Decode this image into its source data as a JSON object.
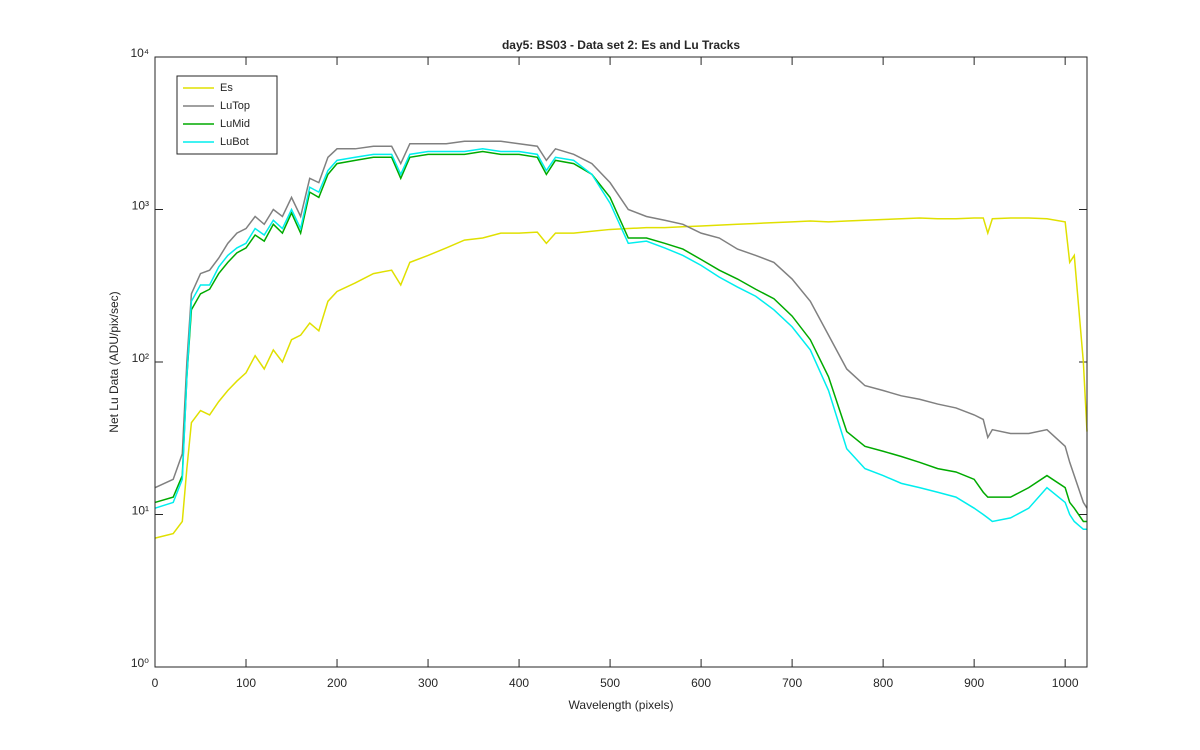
{
  "chart_data": {
    "type": "line",
    "title": "day5: BS03 - Data set 2: Es and Lu Tracks",
    "x_label": "Wavelength (pixels)",
    "y_label": "Net Lu Data (ADU/pix/sec)",
    "yscale": "log",
    "legend_location": "northwest",
    "xlim": [
      0,
      1024
    ],
    "ylim": [
      1,
      10000
    ],
    "xticks": [
      0,
      100,
      200,
      300,
      400,
      500,
      600,
      700,
      800,
      900,
      1000
    ],
    "yticks": [
      {
        "value": 1,
        "label": "10⁰"
      },
      {
        "value": 10,
        "label": "10¹"
      },
      {
        "value": 100,
        "label": "10²"
      },
      {
        "value": 1000,
        "label": "10³"
      },
      {
        "value": 10000,
        "label": "10⁴"
      }
    ],
    "x": [
      0,
      20,
      30,
      35,
      40,
      50,
      60,
      70,
      80,
      90,
      100,
      110,
      120,
      130,
      140,
      150,
      160,
      170,
      180,
      190,
      200,
      220,
      240,
      260,
      270,
      280,
      300,
      320,
      340,
      360,
      380,
      400,
      420,
      430,
      440,
      460,
      480,
      500,
      520,
      540,
      560,
      580,
      600,
      620,
      640,
      660,
      680,
      700,
      720,
      740,
      760,
      780,
      800,
      820,
      840,
      860,
      880,
      900,
      910,
      915,
      920,
      940,
      960,
      980,
      1000,
      1005,
      1010,
      1020,
      1024
    ],
    "series": [
      {
        "name": "Es",
        "color": "#e0e000",
        "values": [
          7,
          7.5,
          9,
          20,
          40,
          48,
          45,
          55,
          65,
          75,
          85,
          110,
          90,
          120,
          100,
          140,
          150,
          180,
          160,
          250,
          290,
          330,
          380,
          400,
          320,
          450,
          500,
          560,
          630,
          650,
          700,
          700,
          710,
          600,
          700,
          700,
          720,
          740,
          750,
          760,
          760,
          770,
          780,
          790,
          800,
          810,
          820,
          830,
          840,
          830,
          840,
          850,
          860,
          870,
          880,
          870,
          870,
          880,
          880,
          700,
          870,
          880,
          880,
          870,
          830,
          450,
          500,
          100,
          35
        ]
      },
      {
        "name": "LuTop",
        "color": "#808080",
        "values": [
          15,
          17,
          25,
          100,
          280,
          380,
          400,
          480,
          600,
          700,
          750,
          900,
          800,
          1000,
          900,
          1200,
          900,
          1600,
          1500,
          2200,
          2500,
          2500,
          2600,
          2600,
          2000,
          2700,
          2700,
          2700,
          2800,
          2800,
          2800,
          2700,
          2600,
          2100,
          2500,
          2300,
          2000,
          1500,
          1000,
          900,
          850,
          800,
          700,
          650,
          550,
          500,
          450,
          350,
          250,
          150,
          90,
          70,
          65,
          60,
          57,
          53,
          50,
          45,
          42,
          32,
          36,
          34,
          34,
          36,
          28,
          22,
          18,
          12,
          11
        ]
      },
      {
        "name": "LuMid",
        "color": "#00aa00",
        "values": [
          12,
          13,
          18,
          80,
          220,
          280,
          300,
          380,
          450,
          520,
          560,
          680,
          620,
          800,
          700,
          950,
          700,
          1300,
          1200,
          1700,
          2000,
          2100,
          2200,
          2200,
          1600,
          2200,
          2300,
          2300,
          2300,
          2400,
          2300,
          2300,
          2200,
          1700,
          2100,
          2000,
          1700,
          1200,
          650,
          650,
          600,
          550,
          470,
          400,
          350,
          300,
          260,
          200,
          140,
          80,
          35,
          28,
          26,
          24,
          22,
          20,
          19,
          17,
          14,
          13,
          13,
          13,
          15,
          18,
          15,
          12,
          11,
          9,
          9
        ]
      },
      {
        "name": "LuBot",
        "color": "#00eeee",
        "values": [
          11,
          12,
          17,
          80,
          250,
          320,
          320,
          420,
          500,
          560,
          600,
          750,
          680,
          850,
          750,
          1000,
          750,
          1400,
          1300,
          1800,
          2100,
          2200,
          2300,
          2300,
          1700,
          2300,
          2400,
          2400,
          2400,
          2500,
          2400,
          2400,
          2300,
          1800,
          2200,
          2100,
          1700,
          1100,
          600,
          620,
          560,
          500,
          430,
          360,
          310,
          270,
          220,
          170,
          120,
          65,
          27,
          20,
          18,
          16,
          15,
          14,
          13,
          11,
          10,
          9.5,
          9,
          9.5,
          11,
          15,
          12,
          10,
          9,
          8,
          8
        ]
      }
    ]
  }
}
